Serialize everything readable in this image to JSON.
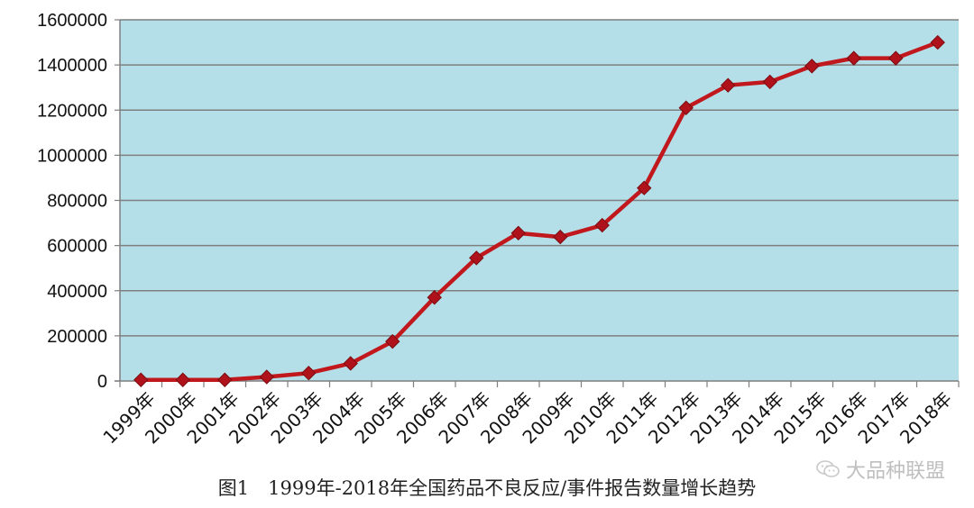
{
  "chart_data": {
    "type": "line",
    "title": "",
    "xlabel": "",
    "ylabel": "",
    "categories": [
      "1999年",
      "2000年",
      "2001年",
      "2002年",
      "2003年",
      "2004年",
      "2005年",
      "2006年",
      "2007年",
      "2008年",
      "2009年",
      "2010年",
      "2011年",
      "2012年",
      "2013年",
      "2014年",
      "2015年",
      "2016年",
      "2017年",
      "2018年"
    ],
    "series": [
      {
        "values": [
          5000,
          5000,
          5000,
          18000,
          35000,
          78000,
          175000,
          370000,
          545000,
          655000,
          638000,
          690000,
          855000,
          1210000,
          1310000,
          1325000,
          1395000,
          1430000,
          1430000,
          1500000
        ]
      }
    ],
    "ylim": [
      0,
      1600000
    ],
    "yticks": [
      "0",
      "200000",
      "400000",
      "600000",
      "800000",
      "1000000",
      "1200000",
      "1400000",
      "1600000"
    ],
    "grid": true,
    "legend": "none",
    "colors": {
      "plot_background": "#b5dfe8",
      "line": "#c0181d",
      "marker": "#b0121b",
      "gridline": "#7f7f7f"
    }
  },
  "caption": {
    "label": "图1",
    "text": "1999年-2018年全国药品不良反应/事件报告数量增长趋势"
  },
  "watermark": {
    "text": "大品种联盟",
    "icon": "wechat-icon"
  }
}
